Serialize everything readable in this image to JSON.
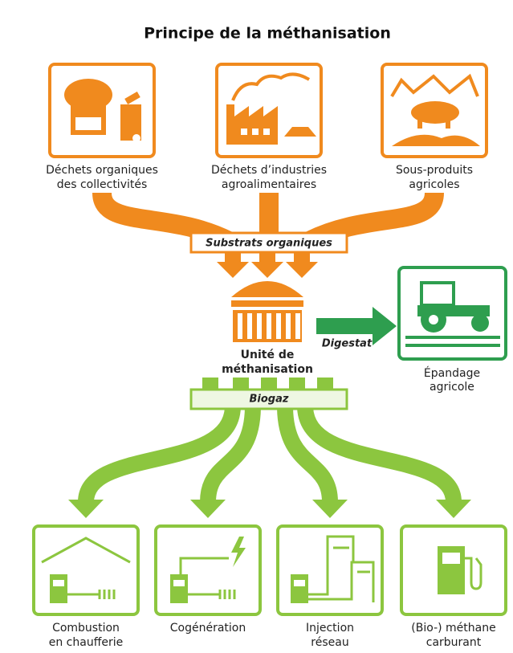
{
  "title": "Principe de la méthanisation",
  "sources": [
    {
      "lines": [
        "Déchets organiques",
        "des collectivités"
      ]
    },
    {
      "lines": [
        "Déchets d’industries",
        "agroalimentaires"
      ]
    },
    {
      "lines": [
        "Sous-produits",
        "agricoles"
      ]
    }
  ],
  "substrats": "Substrats organiques",
  "unit": {
    "lines": [
      "Unité de",
      "méthanisation"
    ]
  },
  "digestat": "Digestat",
  "epandage": {
    "lines": [
      "Épandage",
      "agricole"
    ]
  },
  "biogaz": "Biogaz",
  "outputs": [
    {
      "lines": [
        "Combustion",
        "en chaufferie"
      ]
    },
    {
      "lines": [
        "Cogénération"
      ]
    },
    {
      "lines": [
        "Injection",
        "réseau"
      ]
    },
    {
      "lines": [
        "(Bio-) méthane",
        "carburant"
      ]
    }
  ]
}
